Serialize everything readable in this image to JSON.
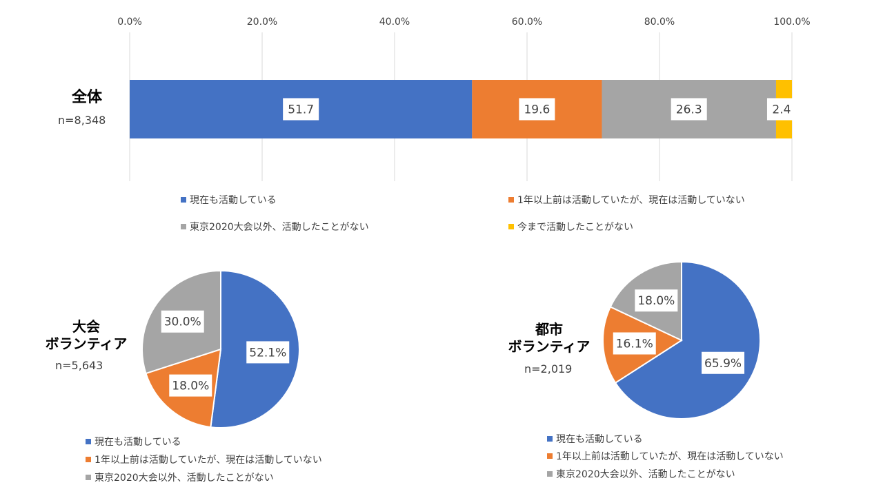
{
  "colors": {
    "current": "#4472C4",
    "past": "#ED7D31",
    "other_only": "#A5A5A5",
    "never": "#FFC000",
    "gridline": "#D9D9D9"
  },
  "categories": [
    "現在も活動している",
    "1年以上前は活動していたが、現在は活動していない",
    "東京2020大会以外、活動したことがない",
    "今まで活動したことがない"
  ],
  "bar_chart": {
    "label": "全体",
    "n": "n=8,348",
    "tick_labels": [
      "0.0%",
      "20.0%",
      "40.0%",
      "60.0%",
      "80.0%",
      "100.0%"
    ]
  },
  "pie_tournament": {
    "label_line1": "大会",
    "label_line2": "ボランティア",
    "n": "n=5,643"
  },
  "pie_city": {
    "label_line1": "都市",
    "label_line2": "ボランティア",
    "n": "n=2,019"
  },
  "chart_data": [
    {
      "type": "bar",
      "orientation": "horizontal-stacked",
      "categories": [
        "全体"
      ],
      "series": [
        {
          "name": "現在も活動している",
          "values": [
            51.7
          ]
        },
        {
          "name": "1年以上前は活動していたが、現在は活動していない",
          "values": [
            19.6
          ]
        },
        {
          "name": "東京2020大会以外、活動したことがない",
          "values": [
            26.3
          ]
        },
        {
          "name": "今まで活動したことがない",
          "values": [
            2.4
          ]
        }
      ],
      "data_labels": [
        "51.7",
        "19.6",
        "26.3",
        "2.4"
      ],
      "xlim": [
        0,
        100
      ],
      "grid": true,
      "legend": "bottom"
    },
    {
      "type": "pie",
      "labels": [
        "現在も活動している",
        "1年以上前は活動していたが、現在は活動していない",
        "東京2020大会以外、活動したことがない"
      ],
      "values": [
        52.1,
        18.0,
        30.0
      ],
      "data_labels": [
        "52.1%",
        "18.0%",
        "30.0%"
      ],
      "legend": "bottom"
    },
    {
      "type": "pie",
      "labels": [
        "現在も活動している",
        "1年以上前は活動していたが、現在は活動していない",
        "東京2020大会以外、活動したことがない"
      ],
      "values": [
        65.9,
        16.1,
        18.0
      ],
      "data_labels": [
        "65.9%",
        "16.1%",
        "18.0%"
      ],
      "legend": "bottom"
    }
  ]
}
